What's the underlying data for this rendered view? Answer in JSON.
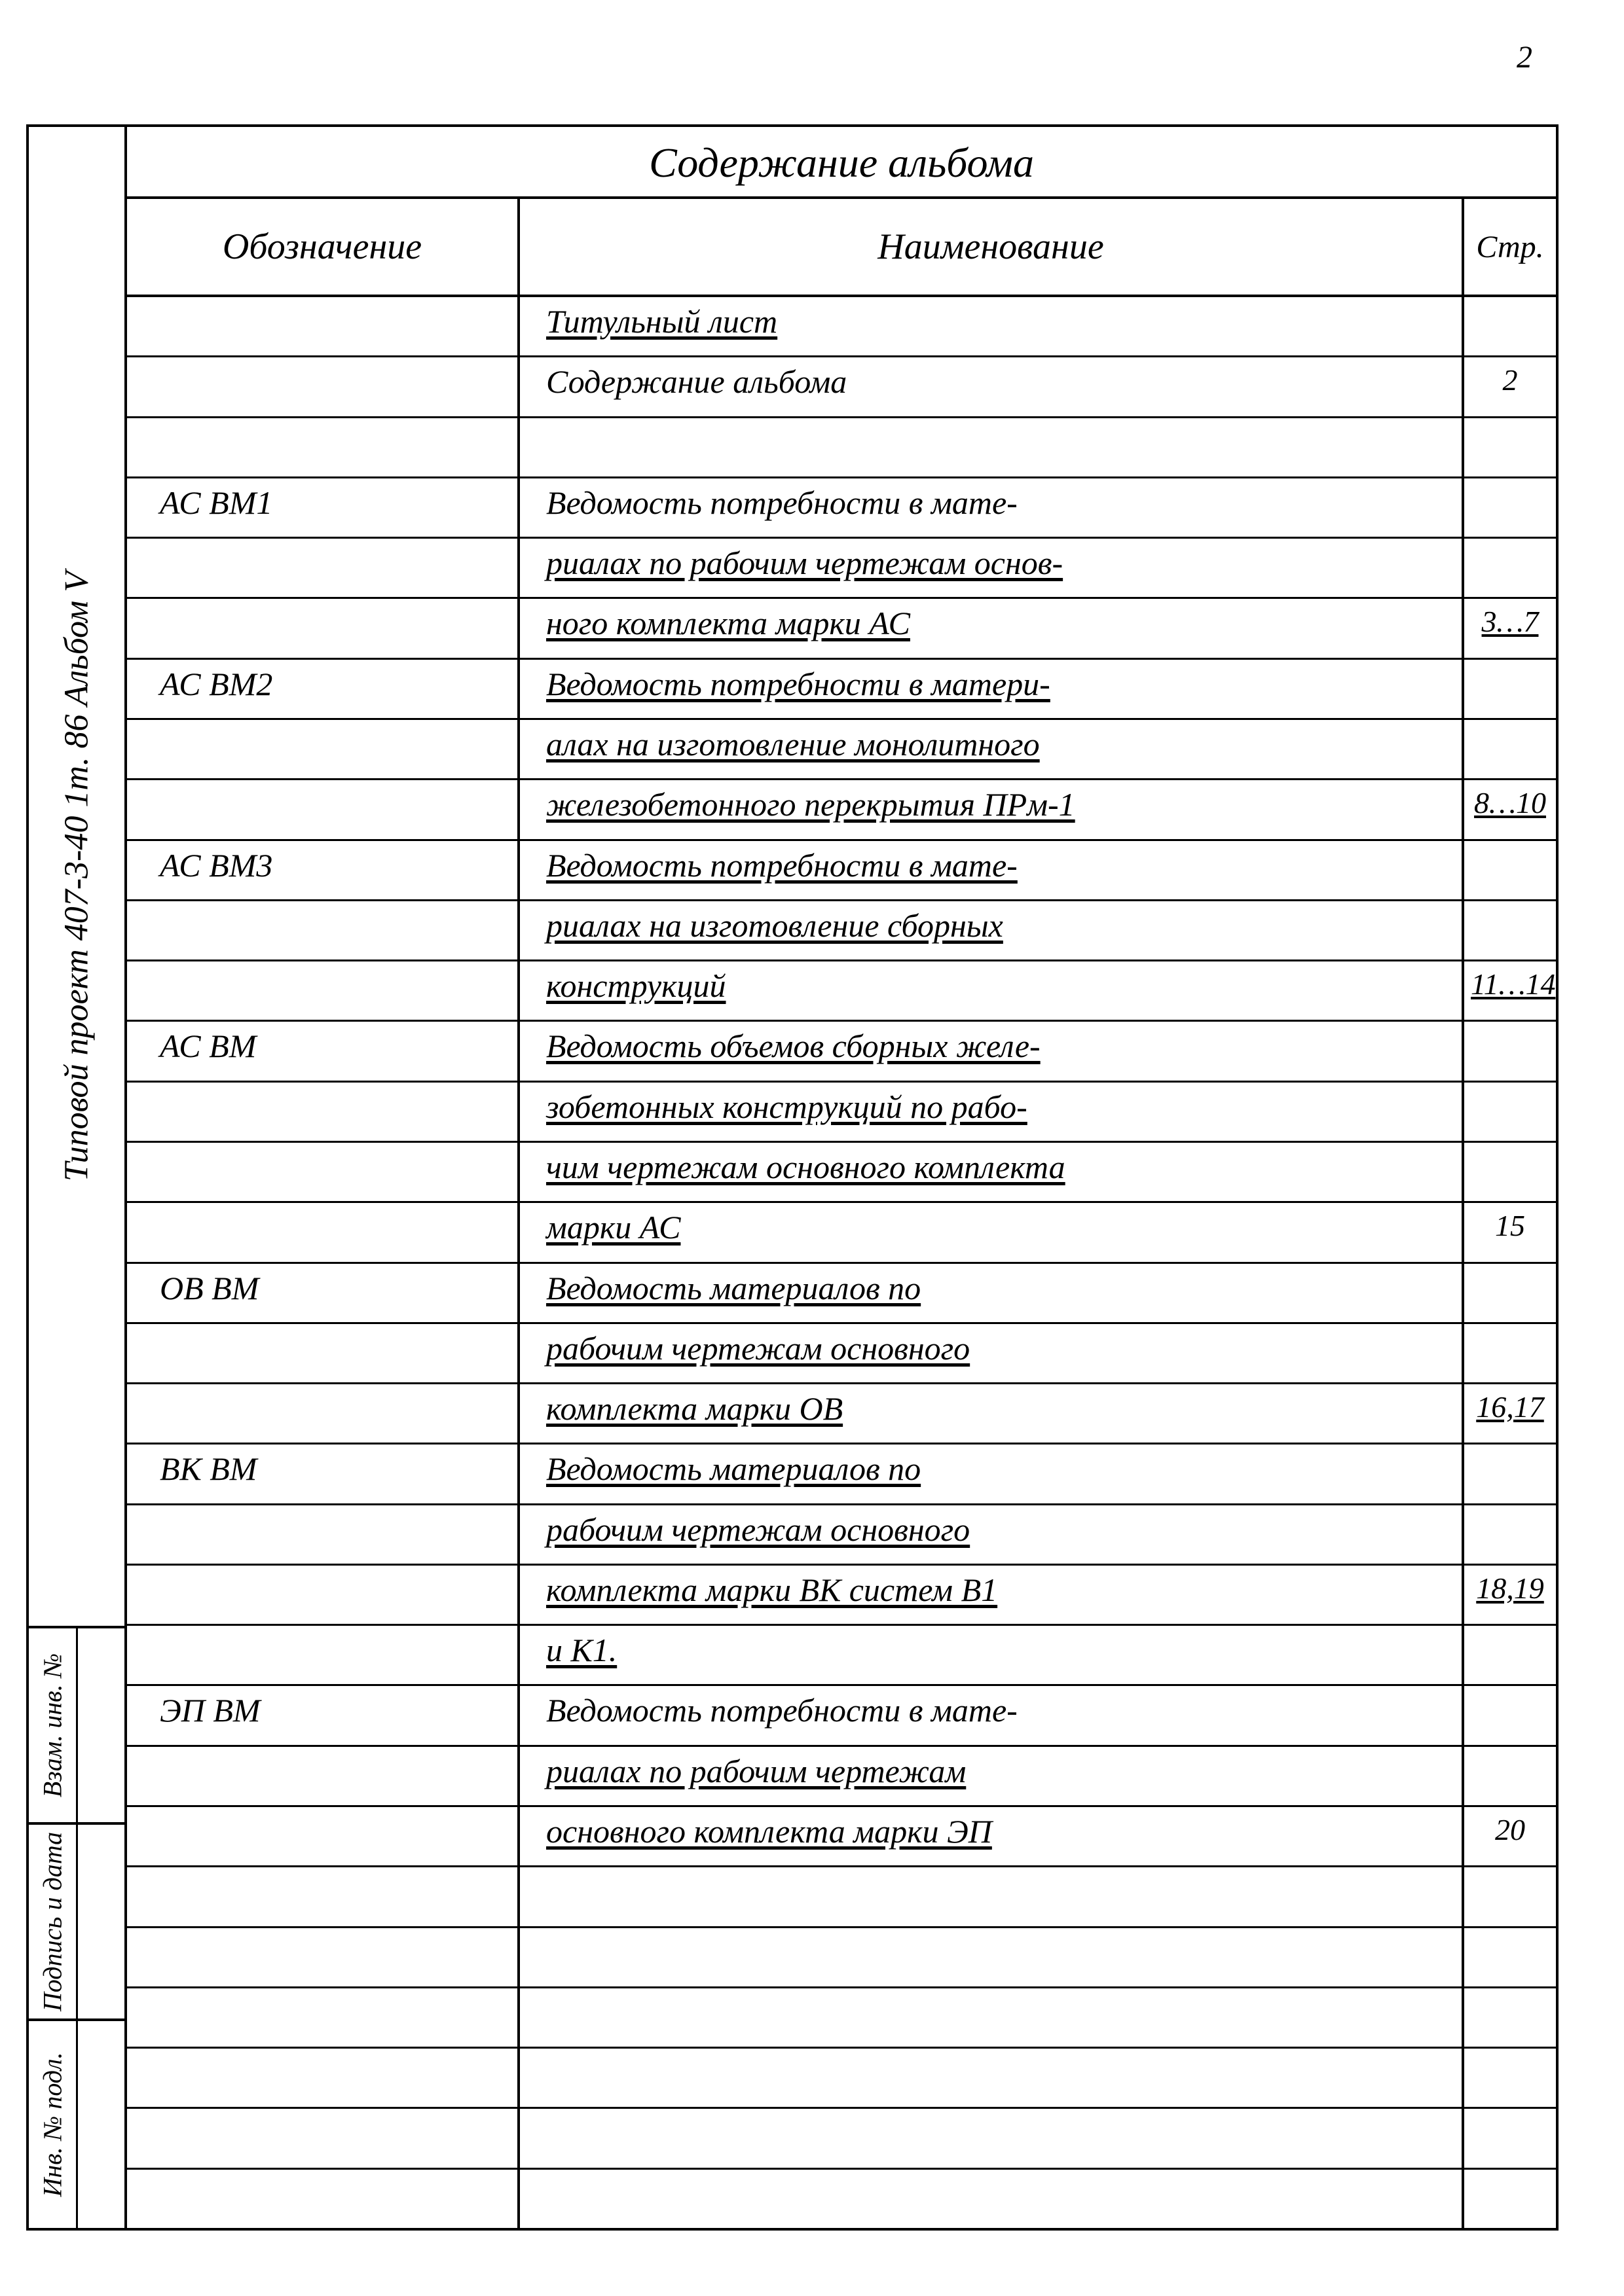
{
  "page_number": "2",
  "title": "Содержание альбома",
  "headers": {
    "col_a": "Обозначение",
    "col_b": "Наименование",
    "col_c": "Стр."
  },
  "left_margin": {
    "top_text": "Типовой   проект   407-3-40 1т. 86   Альбом V",
    "cells": [
      "Взам. инв. №",
      "Подпись и дата",
      "Инв. № подл."
    ]
  },
  "rows": [
    {
      "a": "",
      "b": "Титульный лист",
      "b_ul": true,
      "c": ""
    },
    {
      "a": "",
      "b": "Содержание альбома",
      "b_ul": false,
      "c": "2"
    },
    {
      "a": "",
      "b": "",
      "b_ul": false,
      "c": ""
    },
    {
      "a": "АС  ВМ1",
      "b": "Ведомость потребности в мате-",
      "b_ul": false,
      "c": ""
    },
    {
      "a": "",
      "b": "риалах по рабочим чертежам основ-",
      "b_ul": true,
      "c": ""
    },
    {
      "a": "",
      "b": "ного комплекта марки АС",
      "b_ul": true,
      "c": "3…7",
      "c_ul": true
    },
    {
      "a": "АС  ВМ2",
      "b": "Ведомость потребности в матери-",
      "b_ul": true,
      "c": ""
    },
    {
      "a": "",
      "b": "алах на изготовление монолитного",
      "b_ul": true,
      "c": ""
    },
    {
      "a": "",
      "b": "железобетонного перекрытия ПРм-1",
      "b_ul": true,
      "c": "8…10",
      "c_ul": true
    },
    {
      "a": "АС  ВМ3",
      "b": "Ведомость потребности в мате-",
      "b_ul": true,
      "c": ""
    },
    {
      "a": "",
      "b": "риалах на изготовление сборных",
      "b_ul": true,
      "c": ""
    },
    {
      "a": "",
      "b": "конструкций",
      "b_ul": true,
      "c": "11…14",
      "c_ul": true
    },
    {
      "a": "АС  ВМ",
      "b": "Ведомость объемов сборных желе-",
      "b_ul": true,
      "c": ""
    },
    {
      "a": "",
      "b": "зобетонных конструкций по рабо-",
      "b_ul": true,
      "c": ""
    },
    {
      "a": "",
      "b": "чим чертежам основного комплекта",
      "b_ul": true,
      "c": ""
    },
    {
      "a": "",
      "b": "марки  АС",
      "b_ul": true,
      "c": "15"
    },
    {
      "a": "ОВ  ВМ",
      "b": "Ведомость материалов по",
      "b_ul": true,
      "c": ""
    },
    {
      "a": "",
      "b": "рабочим чертежам основного",
      "b_ul": true,
      "c": ""
    },
    {
      "a": "",
      "b": "комплекта марки ОВ",
      "b_ul": true,
      "c": "16,17",
      "c_ul": true
    },
    {
      "a": "ВК  ВМ",
      "b": "Ведомость материалов по",
      "b_ul": true,
      "c": ""
    },
    {
      "a": "",
      "b": "рабочим чертежам основного",
      "b_ul": true,
      "c": ""
    },
    {
      "a": "",
      "b": "комплекта марки ВК систем В1",
      "b_ul": true,
      "c": "18,19",
      "c_ul": true
    },
    {
      "a": "",
      "b": "и К1.",
      "b_ul": true,
      "c": ""
    },
    {
      "a": "ЭП  ВМ",
      "b": "Ведомость потребности в мате-",
      "b_ul": false,
      "c": ""
    },
    {
      "a": "",
      "b": "риалах по рабочим чертежам",
      "b_ul": true,
      "c": ""
    },
    {
      "a": "",
      "b": "основного комплекта марки ЭП",
      "b_ul": true,
      "c": "20"
    },
    {
      "a": "",
      "b": "",
      "b_ul": false,
      "c": ""
    },
    {
      "a": "",
      "b": "",
      "b_ul": false,
      "c": ""
    },
    {
      "a": "",
      "b": "",
      "b_ul": false,
      "c": ""
    },
    {
      "a": "",
      "b": "",
      "b_ul": false,
      "c": ""
    },
    {
      "a": "",
      "b": "",
      "b_ul": false,
      "c": ""
    },
    {
      "a": "",
      "b": "",
      "b_ul": false,
      "c": ""
    }
  ]
}
